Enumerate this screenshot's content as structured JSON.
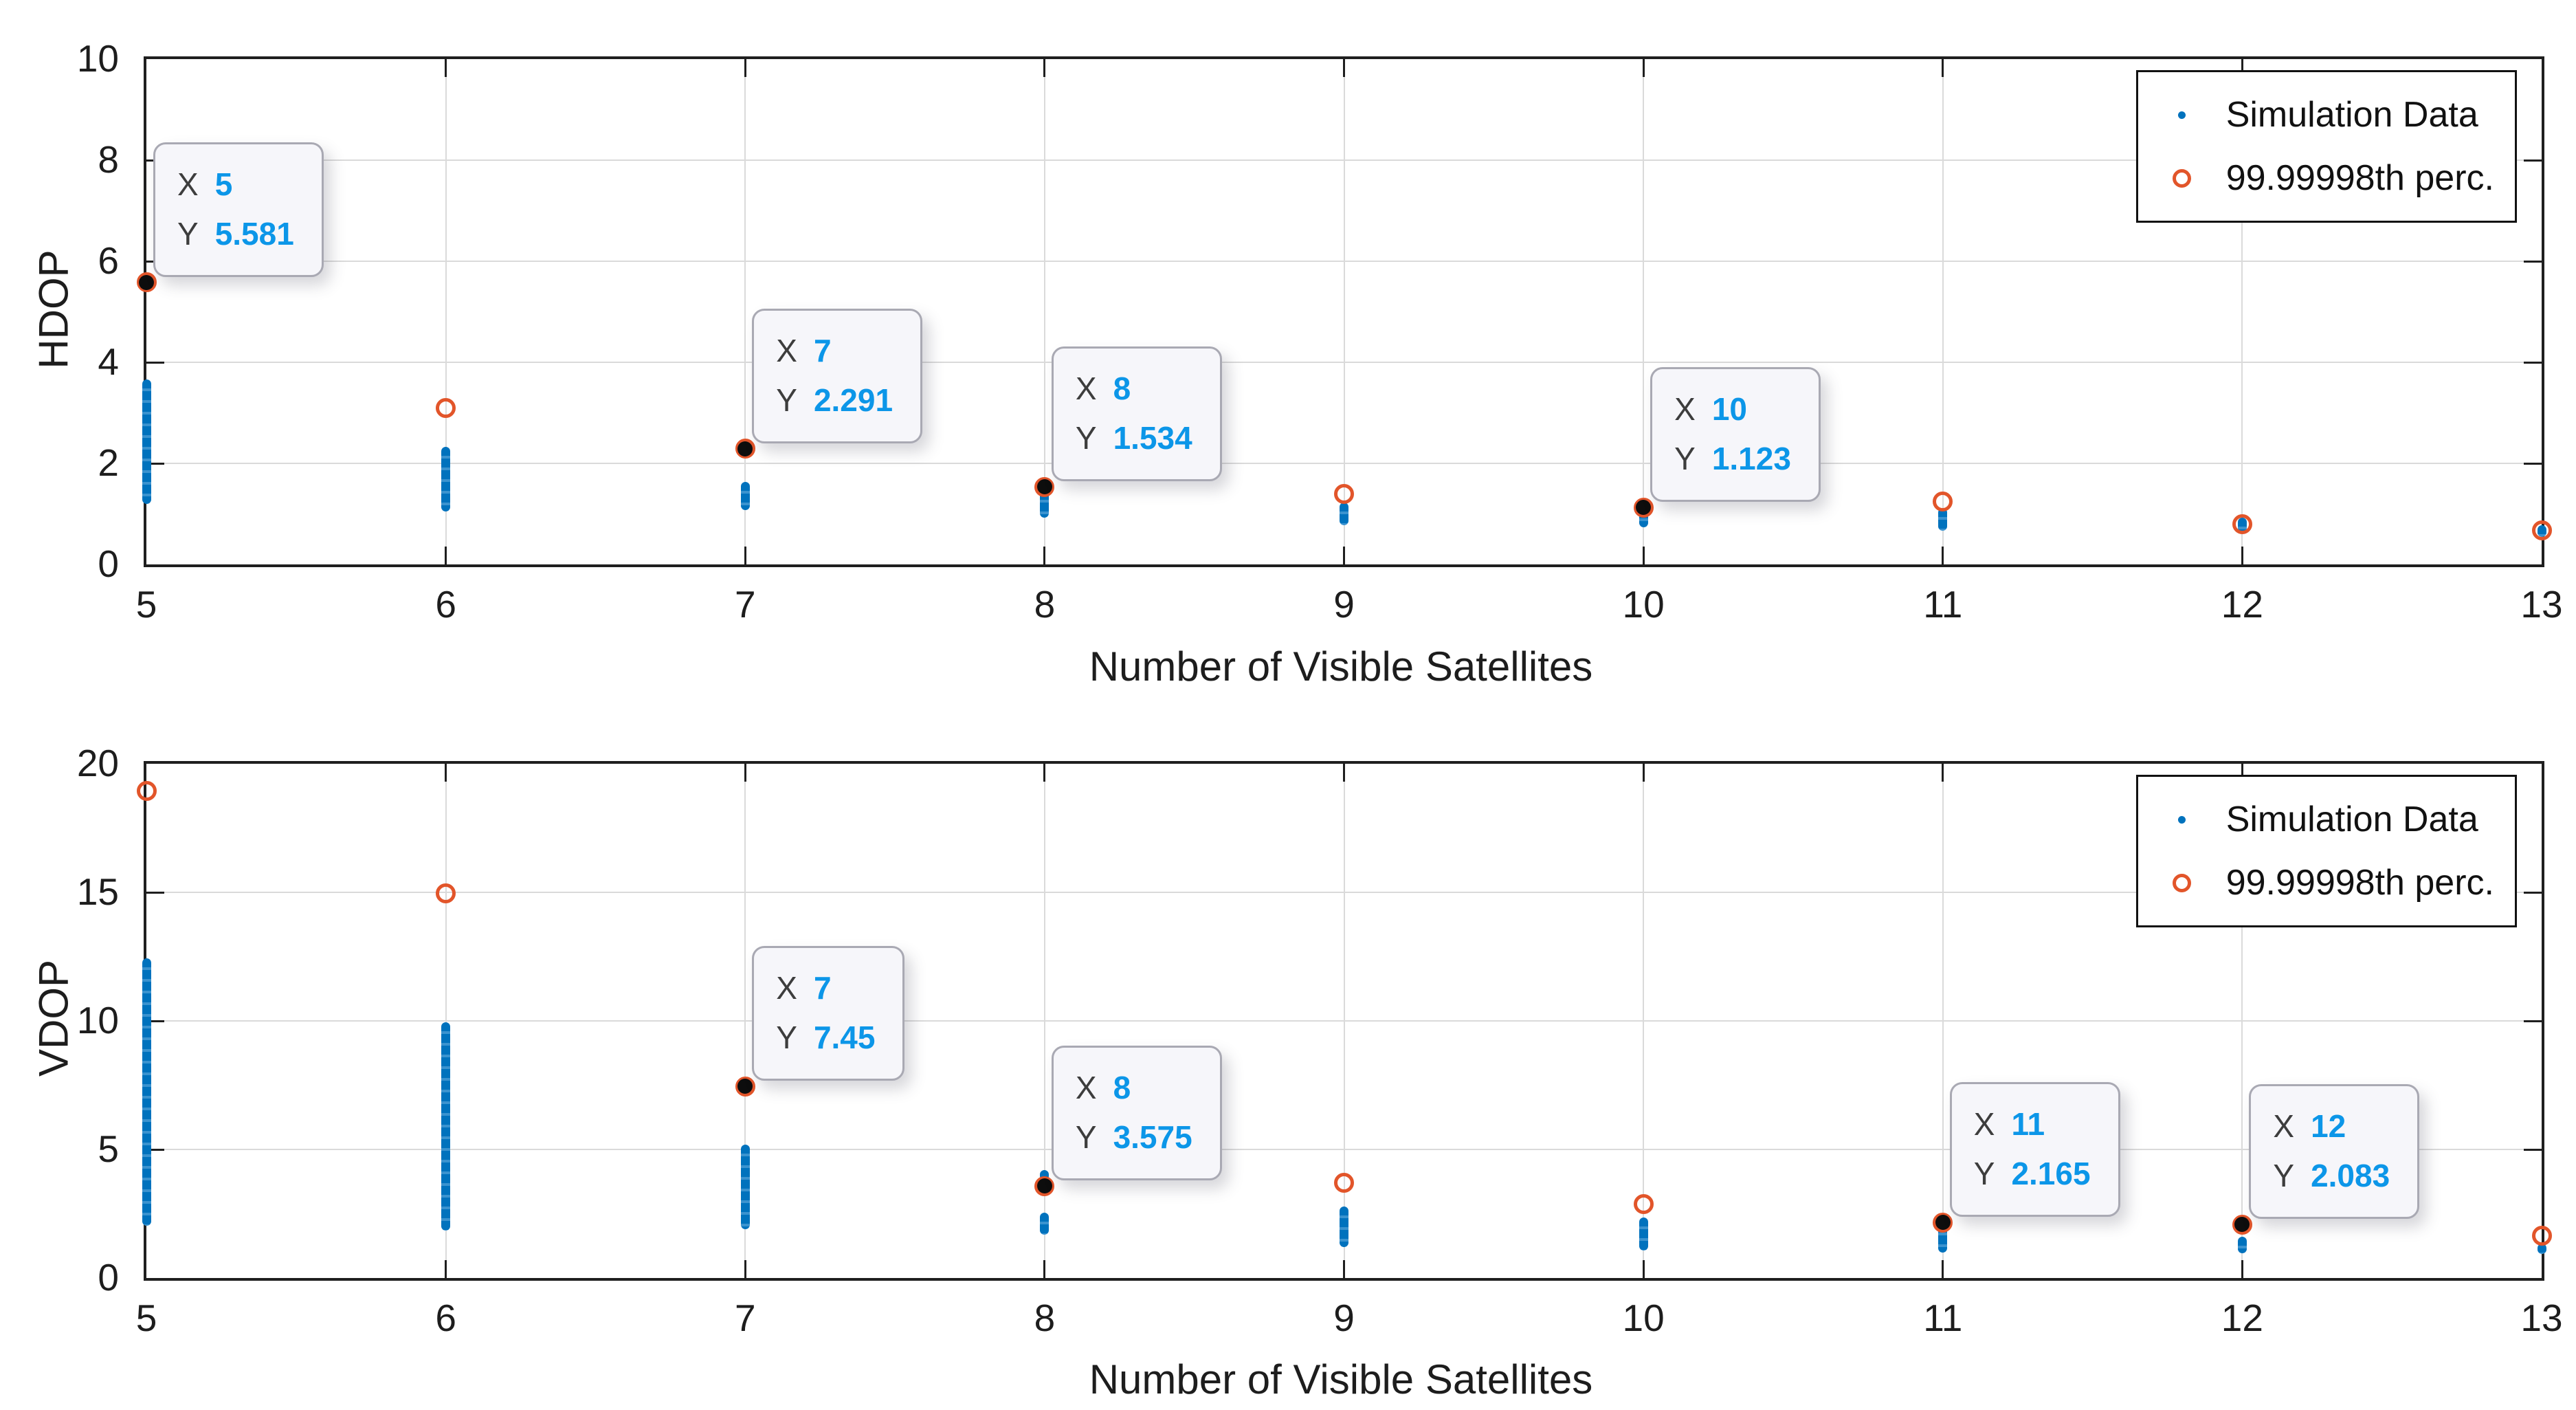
{
  "colors": {
    "simulation_blue": "#0072BD",
    "percentile_orange": "#E2552A",
    "datatip_value_blue": "#0C96E8",
    "grid_gray": "#dadada",
    "axis_black": "#1f1f1f"
  },
  "datatip_prefixes": {
    "x": "X",
    "y": "Y"
  },
  "chart_data": [
    {
      "type": "scatter",
      "name": "hdop-vs-satellites",
      "title": "",
      "xlabel": "Number of Visible Satellites",
      "ylabel": "HDOP",
      "xlim": [
        5,
        13
      ],
      "ylim": [
        0,
        10
      ],
      "xticks": [
        5,
        6,
        7,
        8,
        9,
        10,
        11,
        12,
        13
      ],
      "yticks": [
        0,
        2,
        4,
        6,
        8,
        10
      ],
      "grid": true,
      "legend": {
        "position": "northeast",
        "entries": [
          {
            "label": "Simulation Data",
            "marker": "blue-dot"
          },
          {
            "label": "99.99998th perc.",
            "marker": "orange-circle"
          }
        ]
      },
      "series": [
        {
          "name": "Simulation Data",
          "style": "vertical-dot-strip",
          "color": "#0072BD",
          "ranges": [
            {
              "x": 5,
              "ymin": 1.2,
              "ymax": 3.66
            },
            {
              "x": 6,
              "ymin": 1.05,
              "ymax": 2.33
            },
            {
              "x": 7,
              "ymin": 1.08,
              "ymax": 1.63
            },
            {
              "x": 8,
              "ymin": 0.92,
              "ymax": 1.45
            },
            {
              "x": 9,
              "ymin": 0.78,
              "ymax": 1.22
            },
            {
              "x": 10,
              "ymin": 0.74,
              "ymax": 1.09
            },
            {
              "x": 11,
              "ymin": 0.67,
              "ymax": 1.12
            },
            {
              "x": 12,
              "ymin": 0.63,
              "ymax": 0.92
            },
            {
              "x": 13,
              "ymin": 0.55,
              "ymax": 0.78
            }
          ]
        },
        {
          "name": "99.99998th perc.",
          "style": "open-circle",
          "color": "#E2552A",
          "points": [
            {
              "x": 5,
              "y": 5.581
            },
            {
              "x": 6,
              "y": 3.09
            },
            {
              "x": 7,
              "y": 2.291
            },
            {
              "x": 8,
              "y": 1.534
            },
            {
              "x": 9,
              "y": 1.4
            },
            {
              "x": 10,
              "y": 1.123
            },
            {
              "x": 11,
              "y": 1.24
            },
            {
              "x": 12,
              "y": 0.79
            },
            {
              "x": 13,
              "y": 0.67
            }
          ]
        }
      ],
      "datatips": [
        {
          "x": 5,
          "y": 5.581,
          "x_text": "5",
          "y_text": "5.581"
        },
        {
          "x": 7,
          "y": 2.291,
          "x_text": "7",
          "y_text": "2.291"
        },
        {
          "x": 8,
          "y": 1.534,
          "x_text": "8",
          "y_text": "1.534"
        },
        {
          "x": 10,
          "y": 1.123,
          "x_text": "10",
          "y_text": "1.123"
        }
      ]
    },
    {
      "type": "scatter",
      "name": "vdop-vs-satellites",
      "title": "",
      "xlabel": "Number of Visible Satellites",
      "ylabel": "VDOP",
      "xlim": [
        5,
        13
      ],
      "ylim": [
        0,
        20
      ],
      "xticks": [
        5,
        6,
        7,
        8,
        9,
        10,
        11,
        12,
        13
      ],
      "yticks": [
        0,
        5,
        10,
        15,
        20
      ],
      "grid": true,
      "legend": {
        "position": "northeast",
        "entries": [
          {
            "label": "Simulation Data",
            "marker": "blue-dot"
          },
          {
            "label": "99.99998th perc.",
            "marker": "orange-circle"
          }
        ]
      },
      "series": [
        {
          "name": "Simulation Data",
          "style": "vertical-dot-strip",
          "color": "#0072BD",
          "ranges": [
            {
              "x": 5,
              "ymin": 2.03,
              "ymax": 12.43
            },
            {
              "x": 6,
              "ymin": 1.85,
              "ymax": 9.95
            },
            {
              "x": 7,
              "ymin": 1.9,
              "ymax": 5.2
            },
            {
              "x": 8,
              "ymin": 1.68,
              "ymax": 2.55
            },
            {
              "x": 8,
              "ymin": 3.8,
              "ymax": 4.2
            },
            {
              "x": 9,
              "ymin": 1.2,
              "ymax": 2.77
            },
            {
              "x": 10,
              "ymin": 1.08,
              "ymax": 2.34
            },
            {
              "x": 11,
              "ymin": 1.0,
              "ymax": 2.1
            },
            {
              "x": 12,
              "ymin": 0.95,
              "ymax": 1.6
            },
            {
              "x": 13,
              "ymin": 0.94,
              "ymax": 1.34
            }
          ]
        },
        {
          "name": "99.99998th perc.",
          "style": "open-circle",
          "color": "#E2552A",
          "points": [
            {
              "x": 5,
              "y": 18.95
            },
            {
              "x": 6,
              "y": 14.95
            },
            {
              "x": 7,
              "y": 7.45
            },
            {
              "x": 8,
              "y": 3.575
            },
            {
              "x": 9,
              "y": 3.71
            },
            {
              "x": 10,
              "y": 2.88
            },
            {
              "x": 11,
              "y": 2.165
            },
            {
              "x": 12,
              "y": 2.083
            },
            {
              "x": 13,
              "y": 1.64
            }
          ]
        }
      ],
      "datatips": [
        {
          "x": 7,
          "y": 7.45,
          "x_text": "7",
          "y_text": "7.45"
        },
        {
          "x": 8,
          "y": 3.575,
          "x_text": "8",
          "y_text": "3.575"
        },
        {
          "x": 11,
          "y": 2.165,
          "x_text": "11",
          "y_text": "2.165"
        },
        {
          "x": 12,
          "y": 2.083,
          "x_text": "12",
          "y_text": "2.083"
        }
      ]
    }
  ]
}
